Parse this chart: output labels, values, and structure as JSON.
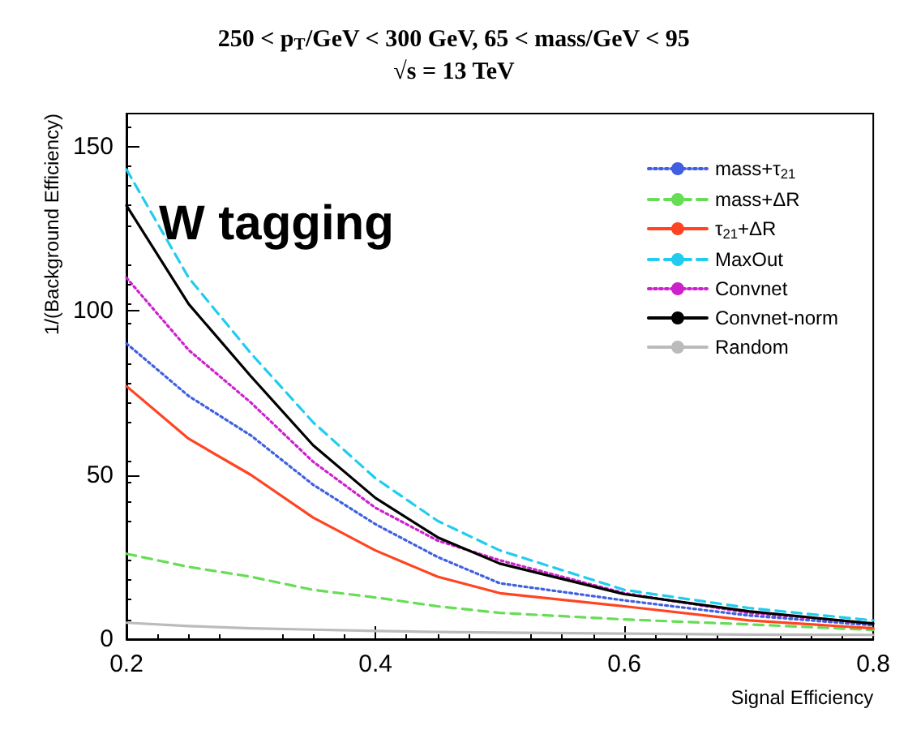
{
  "chart_data": {
    "type": "line",
    "title": "250 < p$_{T}$/GeV < 300 GeV, 65 < mass/GeV < 95",
    "subtitle": "√s = 13 TeV",
    "xlabel": "Signal Efficiency",
    "ylabel": "1/(Background Efficiency)",
    "annotations": [
      "W tagging"
    ],
    "x": [
      0.2,
      0.25,
      0.3,
      0.35,
      0.4,
      0.45,
      0.5,
      0.6,
      0.7,
      0.8
    ],
    "series": [
      {
        "name": "mass+τ$_{21}$",
        "color": "#4060e0",
        "line_style": "dotted",
        "values": [
          90,
          74,
          62,
          47,
          35,
          25,
          17,
          11.8,
          7.2,
          4.2
        ]
      },
      {
        "name": "mass+ΔR",
        "color": "#66dd55",
        "line_style": "dashed",
        "values": [
          26,
          22,
          19,
          15,
          12.7,
          10,
          8,
          6,
          4.5,
          2.8
        ]
      },
      {
        "name": "τ$_{21}$+ΔR",
        "color": "#ff4422",
        "line_style": "solid",
        "values": [
          77,
          61,
          50,
          37,
          27,
          19,
          14,
          10,
          5.7,
          3.3
        ]
      },
      {
        "name": "MaxOut",
        "color": "#22ccee",
        "line_style": "dashed",
        "values": [
          143,
          110,
          87,
          66,
          49,
          36,
          27,
          15,
          9.5,
          5.7
        ]
      },
      {
        "name": "Convnet",
        "color": "#cc22cc",
        "line_style": "dotted",
        "values": [
          110,
          88,
          72,
          54,
          40,
          30,
          24,
          14,
          8,
          4.8
        ]
      },
      {
        "name": "Convnet-norm",
        "color": "#000000",
        "line_style": "solid",
        "values": [
          132,
          102,
          80,
          59,
          43,
          31,
          23,
          13.7,
          8.5,
          4.7
        ]
      },
      {
        "name": "Random",
        "color": "#bbbbbb",
        "line_style": "solid",
        "values": [
          5,
          4,
          3.3,
          2.9,
          2.5,
          2.2,
          2,
          1.7,
          1.4,
          1.3
        ]
      }
    ],
    "xlim": [
      0.2,
      0.8
    ],
    "xticks": [
      0.2,
      0.4,
      0.6,
      0.8
    ],
    "ylim": [
      0,
      160
    ],
    "yticks": [
      0,
      50,
      100,
      150
    ],
    "grid": false,
    "legend": "top right",
    "marker": "none"
  }
}
